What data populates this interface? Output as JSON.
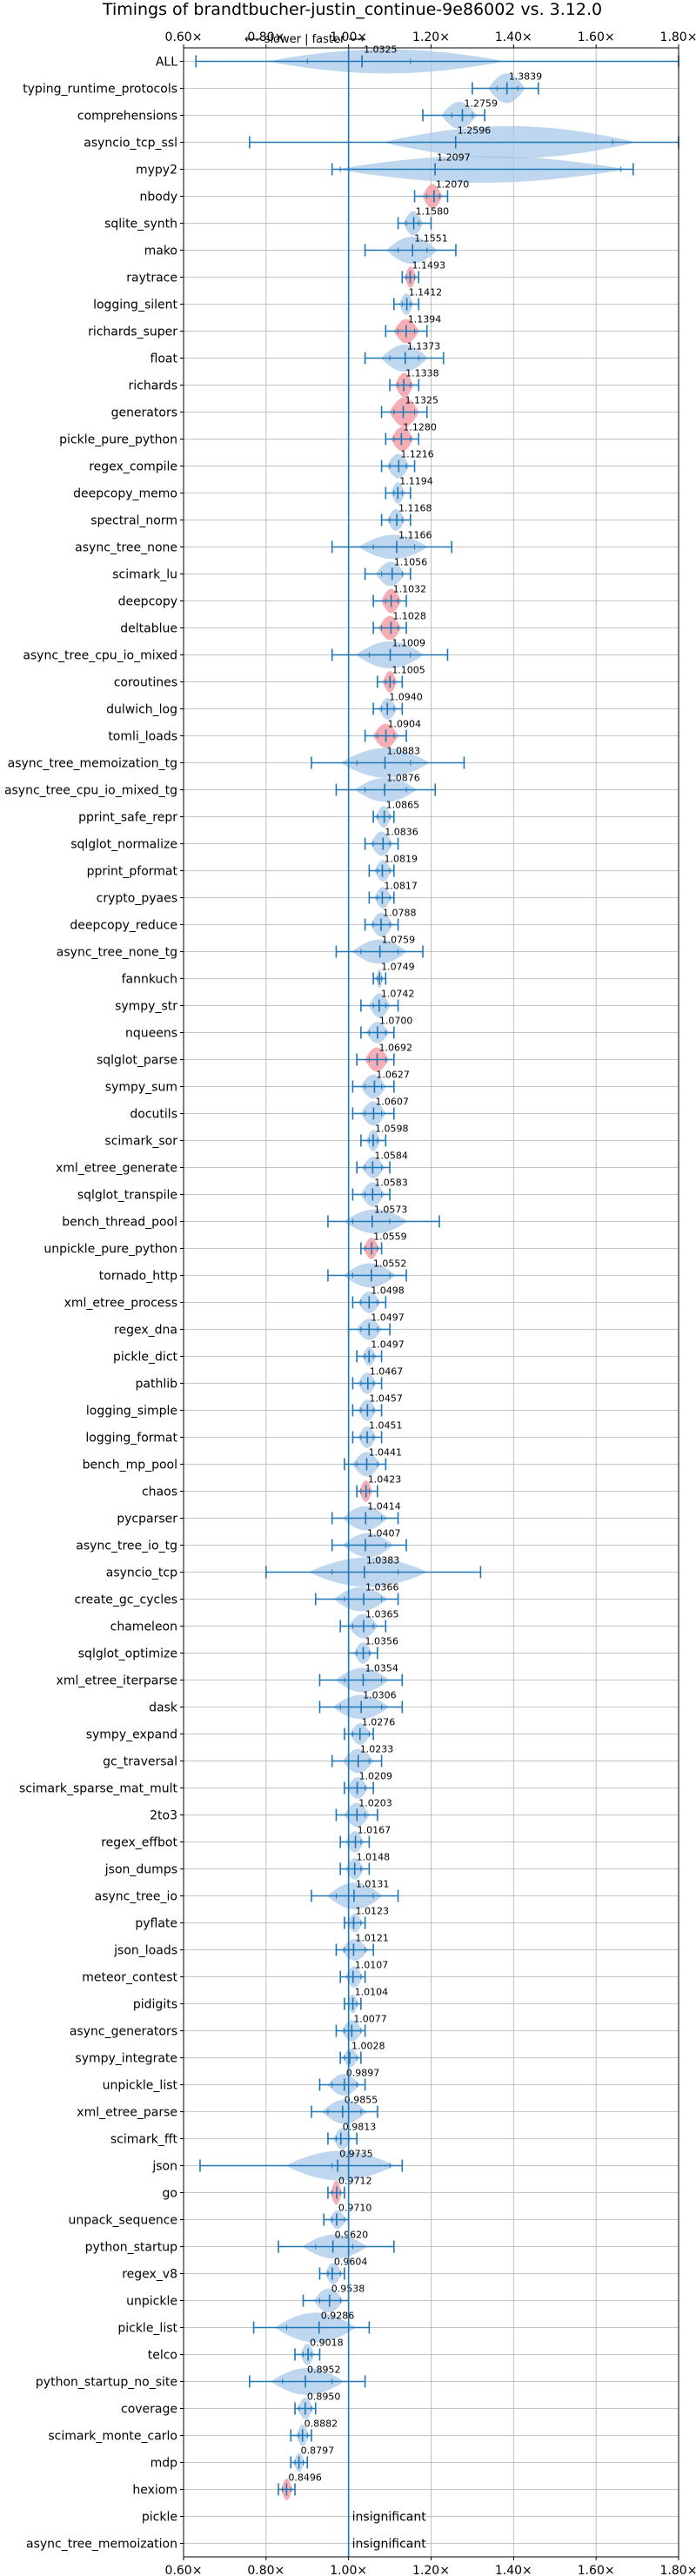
{
  "chart_data": {
    "type": "violin",
    "title": "Timings of brandtbucher-justin_continue-9e86002 vs. 3.12.0",
    "annotation": "⟵ slower | faster ⟶",
    "xlim": [
      0.6,
      1.8
    ],
    "xticks": [
      "0.60×",
      "0.80×",
      "1.00×",
      "1.20×",
      "1.40×",
      "1.60×",
      "1.80×"
    ],
    "xtick_values": [
      0.6,
      0.8,
      1.0,
      1.2,
      1.4,
      1.6,
      1.8
    ],
    "reference_line": 1.0,
    "significant_color": "#f4a0a8",
    "normal_color": "#a8c8e8",
    "line_color": "#1f77b4",
    "insignificant_label": "insignificant",
    "benchmarks": [
      {
        "name": "ALL",
        "value": 1.0325,
        "min": 0.63,
        "max": 1.8,
        "lq": 0.9,
        "uq": 1.15,
        "width": 0.45,
        "hl": false
      },
      {
        "name": "typing_runtime_protocols",
        "value": 1.3839,
        "min": 1.3,
        "max": 1.46,
        "lq": 1.36,
        "uq": 1.41,
        "width": 0.55,
        "hl": false
      },
      {
        "name": "comprehensions",
        "value": 1.2759,
        "min": 1.18,
        "max": 1.33,
        "lq": 1.25,
        "uq": 1.3,
        "width": 0.5,
        "hl": false
      },
      {
        "name": "asyncio_tcp_ssl",
        "value": 1.2596,
        "min": 0.76,
        "max": 1.8,
        "lq": 1.26,
        "uq": 1.64,
        "width": 0.6,
        "hl": false
      },
      {
        "name": "mypy2",
        "value": 1.2097,
        "min": 0.96,
        "max": 1.69,
        "lq": 0.98,
        "uq": 1.66,
        "width": 0.5,
        "hl": false
      },
      {
        "name": "nbody",
        "value": 1.207,
        "min": 1.16,
        "max": 1.24,
        "lq": 1.19,
        "uq": 1.22,
        "width": 0.45,
        "hl": true
      },
      {
        "name": "sqlite_synth",
        "value": 1.158,
        "min": 1.12,
        "max": 1.2,
        "lq": 1.14,
        "uq": 1.17,
        "width": 0.45,
        "hl": false
      },
      {
        "name": "mako",
        "value": 1.1551,
        "min": 1.04,
        "max": 1.26,
        "lq": 1.12,
        "uq": 1.19,
        "width": 0.5,
        "hl": false
      },
      {
        "name": "raytrace",
        "value": 1.1493,
        "min": 1.13,
        "max": 1.17,
        "lq": 1.14,
        "uq": 1.16,
        "width": 0.4,
        "hl": true
      },
      {
        "name": "logging_silent",
        "value": 1.1412,
        "min": 1.11,
        "max": 1.17,
        "lq": 1.13,
        "uq": 1.15,
        "width": 0.4,
        "hl": false
      },
      {
        "name": "richards_super",
        "value": 1.1394,
        "min": 1.09,
        "max": 1.19,
        "lq": 1.12,
        "uq": 1.16,
        "width": 0.45,
        "hl": true
      },
      {
        "name": "float",
        "value": 1.1373,
        "min": 1.04,
        "max": 1.23,
        "lq": 1.1,
        "uq": 1.17,
        "width": 0.5,
        "hl": false
      },
      {
        "name": "richards",
        "value": 1.1338,
        "min": 1.1,
        "max": 1.17,
        "lq": 1.12,
        "uq": 1.15,
        "width": 0.45,
        "hl": true
      },
      {
        "name": "generators",
        "value": 1.1325,
        "min": 1.08,
        "max": 1.19,
        "lq": 1.11,
        "uq": 1.16,
        "width": 0.55,
        "hl": true
      },
      {
        "name": "pickle_pure_python",
        "value": 1.128,
        "min": 1.09,
        "max": 1.17,
        "lq": 1.11,
        "uq": 1.15,
        "width": 0.45,
        "hl": true
      },
      {
        "name": "regex_compile",
        "value": 1.1216,
        "min": 1.08,
        "max": 1.16,
        "lq": 1.1,
        "uq": 1.14,
        "width": 0.45,
        "hl": false
      },
      {
        "name": "deepcopy_memo",
        "value": 1.1194,
        "min": 1.09,
        "max": 1.15,
        "lq": 1.11,
        "uq": 1.13,
        "width": 0.4,
        "hl": false
      },
      {
        "name": "spectral_norm",
        "value": 1.1168,
        "min": 1.08,
        "max": 1.15,
        "lq": 1.1,
        "uq": 1.13,
        "width": 0.4,
        "hl": false
      },
      {
        "name": "async_tree_none",
        "value": 1.1166,
        "min": 0.96,
        "max": 1.25,
        "lq": 1.06,
        "uq": 1.16,
        "width": 0.45,
        "hl": false
      },
      {
        "name": "scimark_lu",
        "value": 1.1056,
        "min": 1.04,
        "max": 1.15,
        "lq": 1.08,
        "uq": 1.13,
        "width": 0.45,
        "hl": false
      },
      {
        "name": "deepcopy",
        "value": 1.1032,
        "min": 1.06,
        "max": 1.14,
        "lq": 1.09,
        "uq": 1.12,
        "width": 0.45,
        "hl": true
      },
      {
        "name": "deltablue",
        "value": 1.1028,
        "min": 1.06,
        "max": 1.14,
        "lq": 1.08,
        "uq": 1.12,
        "width": 0.45,
        "hl": true
      },
      {
        "name": "async_tree_cpu_io_mixed",
        "value": 1.1009,
        "min": 0.96,
        "max": 1.24,
        "lq": 1.05,
        "uq": 1.15,
        "width": 0.5,
        "hl": false
      },
      {
        "name": "coroutines",
        "value": 1.1005,
        "min": 1.07,
        "max": 1.13,
        "lq": 1.09,
        "uq": 1.11,
        "width": 0.4,
        "hl": true
      },
      {
        "name": "dulwich_log",
        "value": 1.094,
        "min": 1.06,
        "max": 1.13,
        "lq": 1.08,
        "uq": 1.11,
        "width": 0.4,
        "hl": false
      },
      {
        "name": "tomli_loads",
        "value": 1.0904,
        "min": 1.04,
        "max": 1.14,
        "lq": 1.07,
        "uq": 1.11,
        "width": 0.45,
        "hl": true
      },
      {
        "name": "async_tree_memoization_tg",
        "value": 1.0883,
        "min": 0.91,
        "max": 1.28,
        "lq": 1.02,
        "uq": 1.15,
        "width": 0.55,
        "hl": false
      },
      {
        "name": "async_tree_cpu_io_mixed_tg",
        "value": 1.0876,
        "min": 0.97,
        "max": 1.21,
        "lq": 1.04,
        "uq": 1.14,
        "width": 0.45,
        "hl": false
      },
      {
        "name": "pprint_safe_repr",
        "value": 1.0865,
        "min": 1.06,
        "max": 1.11,
        "lq": 1.07,
        "uq": 1.1,
        "width": 0.4,
        "hl": false
      },
      {
        "name": "sqlglot_normalize",
        "value": 1.0836,
        "min": 1.04,
        "max": 1.12,
        "lq": 1.06,
        "uq": 1.1,
        "width": 0.45,
        "hl": false
      },
      {
        "name": "pprint_pformat",
        "value": 1.0819,
        "min": 1.05,
        "max": 1.11,
        "lq": 1.07,
        "uq": 1.1,
        "width": 0.4,
        "hl": false
      },
      {
        "name": "crypto_pyaes",
        "value": 1.0817,
        "min": 1.05,
        "max": 1.11,
        "lq": 1.07,
        "uq": 1.1,
        "width": 0.4,
        "hl": false
      },
      {
        "name": "deepcopy_reduce",
        "value": 1.0788,
        "min": 1.04,
        "max": 1.12,
        "lq": 1.06,
        "uq": 1.1,
        "width": 0.45,
        "hl": false
      },
      {
        "name": "async_tree_none_tg",
        "value": 1.0759,
        "min": 0.97,
        "max": 1.18,
        "lq": 1.03,
        "uq": 1.12,
        "width": 0.45,
        "hl": false
      },
      {
        "name": "fannkuch",
        "value": 1.0749,
        "min": 1.06,
        "max": 1.09,
        "lq": 1.07,
        "uq": 1.08,
        "width": 0.35,
        "hl": false
      },
      {
        "name": "sympy_str",
        "value": 1.0742,
        "min": 1.03,
        "max": 1.12,
        "lq": 1.06,
        "uq": 1.09,
        "width": 0.45,
        "hl": false
      },
      {
        "name": "nqueens",
        "value": 1.07,
        "min": 1.03,
        "max": 1.11,
        "lq": 1.05,
        "uq": 1.09,
        "width": 0.4,
        "hl": false
      },
      {
        "name": "sqlglot_parse",
        "value": 1.0692,
        "min": 1.02,
        "max": 1.11,
        "lq": 1.05,
        "uq": 1.09,
        "width": 0.45,
        "hl": true
      },
      {
        "name": "sympy_sum",
        "value": 1.0627,
        "min": 1.01,
        "max": 1.11,
        "lq": 1.04,
        "uq": 1.08,
        "width": 0.45,
        "hl": false
      },
      {
        "name": "docutils",
        "value": 1.0607,
        "min": 1.01,
        "max": 1.11,
        "lq": 1.04,
        "uq": 1.08,
        "width": 0.45,
        "hl": false
      },
      {
        "name": "scimark_sor",
        "value": 1.0598,
        "min": 1.03,
        "max": 1.09,
        "lq": 1.05,
        "uq": 1.07,
        "width": 0.4,
        "hl": false
      },
      {
        "name": "xml_etree_generate",
        "value": 1.0584,
        "min": 1.02,
        "max": 1.1,
        "lq": 1.04,
        "uq": 1.08,
        "width": 0.4,
        "hl": false
      },
      {
        "name": "sqlglot_transpile",
        "value": 1.0583,
        "min": 1.01,
        "max": 1.1,
        "lq": 1.04,
        "uq": 1.08,
        "width": 0.45,
        "hl": false
      },
      {
        "name": "bench_thread_pool",
        "value": 1.0573,
        "min": 0.95,
        "max": 1.22,
        "lq": 1.01,
        "uq": 1.1,
        "width": 0.45,
        "hl": false
      },
      {
        "name": "unpickle_pure_python",
        "value": 1.0559,
        "min": 1.03,
        "max": 1.08,
        "lq": 1.04,
        "uq": 1.07,
        "width": 0.4,
        "hl": true
      },
      {
        "name": "tornado_http",
        "value": 1.0552,
        "min": 0.95,
        "max": 1.14,
        "lq": 1.01,
        "uq": 1.1,
        "width": 0.45,
        "hl": false
      },
      {
        "name": "xml_etree_process",
        "value": 1.0498,
        "min": 1.01,
        "max": 1.09,
        "lq": 1.03,
        "uq": 1.07,
        "width": 0.4,
        "hl": false
      },
      {
        "name": "regex_dna",
        "value": 1.0497,
        "min": 1.0,
        "max": 1.1,
        "lq": 1.03,
        "uq": 1.07,
        "width": 0.4,
        "hl": false
      },
      {
        "name": "pickle_dict",
        "value": 1.0497,
        "min": 1.02,
        "max": 1.08,
        "lq": 1.04,
        "uq": 1.06,
        "width": 0.35,
        "hl": false
      },
      {
        "name": "pathlib",
        "value": 1.0467,
        "min": 1.01,
        "max": 1.08,
        "lq": 1.03,
        "uq": 1.06,
        "width": 0.4,
        "hl": false
      },
      {
        "name": "logging_simple",
        "value": 1.0457,
        "min": 1.01,
        "max": 1.08,
        "lq": 1.03,
        "uq": 1.06,
        "width": 0.4,
        "hl": false
      },
      {
        "name": "logging_format",
        "value": 1.0451,
        "min": 1.01,
        "max": 1.08,
        "lq": 1.03,
        "uq": 1.06,
        "width": 0.4,
        "hl": false
      },
      {
        "name": "bench_mp_pool",
        "value": 1.0441,
        "min": 0.99,
        "max": 1.09,
        "lq": 1.02,
        "uq": 1.07,
        "width": 0.45,
        "hl": false
      },
      {
        "name": "chaos",
        "value": 1.0423,
        "min": 1.02,
        "max": 1.07,
        "lq": 1.03,
        "uq": 1.05,
        "width": 0.4,
        "hl": true
      },
      {
        "name": "pycparser",
        "value": 1.0414,
        "min": 0.96,
        "max": 1.12,
        "lq": 1.0,
        "uq": 1.08,
        "width": 0.45,
        "hl": false
      },
      {
        "name": "async_tree_io_tg",
        "value": 1.0407,
        "min": 0.96,
        "max": 1.14,
        "lq": 1.0,
        "uq": 1.09,
        "width": 0.45,
        "hl": false
      },
      {
        "name": "asyncio_tcp",
        "value": 1.0383,
        "min": 0.8,
        "max": 1.32,
        "lq": 0.96,
        "uq": 1.12,
        "width": 0.55,
        "hl": false
      },
      {
        "name": "create_gc_cycles",
        "value": 1.0366,
        "min": 0.92,
        "max": 1.12,
        "lq": 0.99,
        "uq": 1.08,
        "width": 0.45,
        "hl": false
      },
      {
        "name": "chameleon",
        "value": 1.0365,
        "min": 0.98,
        "max": 1.09,
        "lq": 1.01,
        "uq": 1.06,
        "width": 0.45,
        "hl": false
      },
      {
        "name": "sqlglot_optimize",
        "value": 1.0356,
        "min": 1.0,
        "max": 1.07,
        "lq": 1.02,
        "uq": 1.05,
        "width": 0.4,
        "hl": false
      },
      {
        "name": "xml_etree_iterparse",
        "value": 1.0354,
        "min": 0.93,
        "max": 1.13,
        "lq": 0.99,
        "uq": 1.08,
        "width": 0.45,
        "hl": false
      },
      {
        "name": "dask",
        "value": 1.0306,
        "min": 0.93,
        "max": 1.13,
        "lq": 0.98,
        "uq": 1.08,
        "width": 0.45,
        "hl": false
      },
      {
        "name": "sympy_expand",
        "value": 1.0276,
        "min": 0.99,
        "max": 1.06,
        "lq": 1.01,
        "uq": 1.05,
        "width": 0.4,
        "hl": false
      },
      {
        "name": "gc_traversal",
        "value": 1.0233,
        "min": 0.96,
        "max": 1.08,
        "lq": 1.0,
        "uq": 1.05,
        "width": 0.45,
        "hl": false
      },
      {
        "name": "scimark_sparse_mat_mult",
        "value": 1.0209,
        "min": 0.99,
        "max": 1.06,
        "lq": 1.0,
        "uq": 1.04,
        "width": 0.4,
        "hl": false
      },
      {
        "name": "2to3",
        "value": 1.0203,
        "min": 0.97,
        "max": 1.07,
        "lq": 1.0,
        "uq": 1.04,
        "width": 0.45,
        "hl": false
      },
      {
        "name": "regex_effbot",
        "value": 1.0167,
        "min": 0.98,
        "max": 1.05,
        "lq": 1.0,
        "uq": 1.03,
        "width": 0.4,
        "hl": false
      },
      {
        "name": "json_dumps",
        "value": 1.0148,
        "min": 0.98,
        "max": 1.05,
        "lq": 1.0,
        "uq": 1.03,
        "width": 0.4,
        "hl": false
      },
      {
        "name": "async_tree_io",
        "value": 1.0131,
        "min": 0.91,
        "max": 1.12,
        "lq": 0.97,
        "uq": 1.06,
        "width": 0.5,
        "hl": false
      },
      {
        "name": "pyflate",
        "value": 1.0123,
        "min": 0.99,
        "max": 1.04,
        "lq": 1.0,
        "uq": 1.03,
        "width": 0.35,
        "hl": false
      },
      {
        "name": "json_loads",
        "value": 1.0121,
        "min": 0.97,
        "max": 1.06,
        "lq": 0.99,
        "uq": 1.04,
        "width": 0.4,
        "hl": false
      },
      {
        "name": "meteor_contest",
        "value": 1.0107,
        "min": 0.98,
        "max": 1.04,
        "lq": 1.0,
        "uq": 1.03,
        "width": 0.4,
        "hl": false
      },
      {
        "name": "pidigits",
        "value": 1.0104,
        "min": 0.99,
        "max": 1.03,
        "lq": 1.0,
        "uq": 1.02,
        "width": 0.35,
        "hl": false
      },
      {
        "name": "async_generators",
        "value": 1.0077,
        "min": 0.97,
        "max": 1.04,
        "lq": 0.99,
        "uq": 1.03,
        "width": 0.4,
        "hl": false
      },
      {
        "name": "sympy_integrate",
        "value": 1.0028,
        "min": 0.98,
        "max": 1.03,
        "lq": 0.99,
        "uq": 1.02,
        "width": 0.35,
        "hl": false
      },
      {
        "name": "unpickle_list",
        "value": 0.9897,
        "min": 0.93,
        "max": 1.04,
        "lq": 0.96,
        "uq": 1.02,
        "width": 0.4,
        "hl": false
      },
      {
        "name": "xml_etree_parse",
        "value": 0.9855,
        "min": 0.91,
        "max": 1.07,
        "lq": 0.95,
        "uq": 1.03,
        "width": 0.45,
        "hl": false
      },
      {
        "name": "scimark_fft",
        "value": 0.9813,
        "min": 0.95,
        "max": 1.02,
        "lq": 0.97,
        "uq": 1.0,
        "width": 0.4,
        "hl": false
      },
      {
        "name": "json",
        "value": 0.9735,
        "min": 0.64,
        "max": 1.13,
        "lq": 0.96,
        "uq": 1.1,
        "width": 0.55,
        "hl": false
      },
      {
        "name": "go",
        "value": 0.9712,
        "min": 0.95,
        "max": 0.99,
        "lq": 0.96,
        "uq": 0.98,
        "width": 0.45,
        "hl": true
      },
      {
        "name": "unpack_sequence",
        "value": 0.971,
        "min": 0.94,
        "max": 1.0,
        "lq": 0.96,
        "uq": 0.99,
        "width": 0.35,
        "hl": false
      },
      {
        "name": "python_startup",
        "value": 0.962,
        "min": 0.83,
        "max": 1.11,
        "lq": 0.92,
        "uq": 1.01,
        "width": 0.45,
        "hl": false
      },
      {
        "name": "regex_v8",
        "value": 0.9604,
        "min": 0.93,
        "max": 0.99,
        "lq": 0.95,
        "uq": 0.98,
        "width": 0.4,
        "hl": false
      },
      {
        "name": "unpickle",
        "value": 0.9538,
        "min": 0.89,
        "max": 1.0,
        "lq": 0.93,
        "uq": 0.98,
        "width": 0.45,
        "hl": false
      },
      {
        "name": "pickle_list",
        "value": 0.9286,
        "min": 0.77,
        "max": 1.05,
        "lq": 0.85,
        "uq": 1.0,
        "width": 0.55,
        "hl": false
      },
      {
        "name": "telco",
        "value": 0.9018,
        "min": 0.87,
        "max": 0.93,
        "lq": 0.89,
        "uq": 0.91,
        "width": 0.4,
        "hl": false
      },
      {
        "name": "python_startup_no_site",
        "value": 0.8952,
        "min": 0.76,
        "max": 1.04,
        "lq": 0.84,
        "uq": 0.96,
        "width": 0.5,
        "hl": false
      },
      {
        "name": "coverage",
        "value": 0.895,
        "min": 0.87,
        "max": 0.92,
        "lq": 0.88,
        "uq": 0.91,
        "width": 0.4,
        "hl": false
      },
      {
        "name": "scimark_monte_carlo",
        "value": 0.8882,
        "min": 0.86,
        "max": 0.91,
        "lq": 0.88,
        "uq": 0.9,
        "width": 0.4,
        "hl": false
      },
      {
        "name": "mdp",
        "value": 0.8797,
        "min": 0.86,
        "max": 0.9,
        "lq": 0.87,
        "uq": 0.89,
        "width": 0.35,
        "hl": false
      },
      {
        "name": "hexiom",
        "value": 0.8496,
        "min": 0.83,
        "max": 0.87,
        "lq": 0.84,
        "uq": 0.86,
        "width": 0.4,
        "hl": true
      },
      {
        "name": "pickle",
        "value": null,
        "insignificant": true
      },
      {
        "name": "async_tree_memoization",
        "value": null,
        "insignificant": true
      }
    ]
  }
}
